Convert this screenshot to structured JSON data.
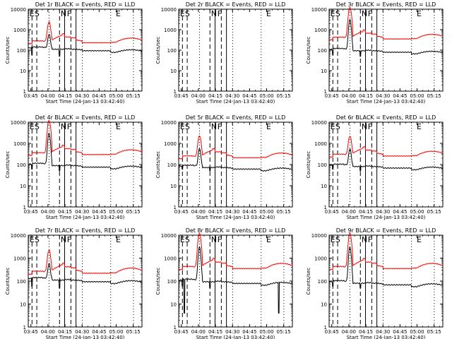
{
  "chart_data": {
    "type": "line",
    "layout": "3x3 grid of panels",
    "shared_xlabel": "Start Time (24-Jan-13 03:42:40)",
    "shared_ylabel": "Counts/sec",
    "x_tick_labels": [
      "03:45",
      "04:00",
      "04:15",
      "04:30",
      "04:45",
      "05:00",
      "05:15"
    ],
    "x_ticks_min": [
      2.33,
      17.33,
      32.33,
      47.33,
      62.33,
      77.33,
      92.33
    ],
    "xlim_min": [
      0,
      100
    ],
    "y_tick_labels": [
      "1",
      "10",
      "100",
      "1000",
      "10000"
    ],
    "y_ticks": [
      1,
      10,
      100,
      1000,
      10000
    ],
    "ylim": [
      1,
      10000
    ],
    "yscale": "log",
    "series_legend": "BLACK = Events, RED = LLD",
    "series_colors": {
      "events": "#000000",
      "lld": "#ff0000"
    },
    "event_letters": [
      "E",
      "S",
      "N",
      "F",
      "E"
    ],
    "panels": [
      {
        "title": "Det 1r BLACK = Events, RED = LLD",
        "labels": [
          "E",
          "S",
          "N",
          "F",
          "E"
        ],
        "lld_base": 210,
        "events_base": 130,
        "flare_peak": 2400,
        "dips": []
      },
      {
        "title": "Det 2r BLACK = Events, RED = LLD",
        "labels": [
          "E",
          "S",
          "N",
          "F",
          "E"
        ],
        "lld_base": 0,
        "events_base": 0,
        "flare_peak": 0,
        "dips": []
      },
      {
        "title": "Det 3r BLACK = Events, RED = LLD",
        "labels": [
          "E",
          "S",
          "N",
          "F",
          "E"
        ],
        "lld_base": 320,
        "events_base": 110,
        "flare_peak": 12000,
        "dips": []
      },
      {
        "title": "Det 4r BLACK = Events, RED = LLD",
        "labels": [
          "E",
          "S",
          "N",
          "F",
          "E"
        ],
        "lld_base": 270,
        "events_base": 105,
        "flare_peak": 12000,
        "dips": []
      },
      {
        "title": "Det 5r BLACK = Events, RED = LLD",
        "labels": [
          "E",
          "S",
          "N",
          "F",
          "E"
        ],
        "lld_base": 190,
        "events_base": 85,
        "flare_peak": 2300,
        "dips": []
      },
      {
        "title": "Det 6r BLACK = Events, RED = LLD",
        "labels": [
          "E",
          "S",
          "N",
          "F",
          "E"
        ],
        "lld_base": 230,
        "events_base": 95,
        "flare_peak": 2200,
        "dips": []
      },
      {
        "title": "Det 7r BLACK = Events, RED = LLD",
        "labels": [
          "E",
          "S",
          "N",
          "F",
          "E"
        ],
        "lld_base": 200,
        "events_base": 130,
        "flare_peak": 2300,
        "dips": []
      },
      {
        "title": "Det 8r BLACK = Events, RED = LLD",
        "labels": [
          "E",
          "S",
          "N",
          "F",
          "E"
        ],
        "lld_base": 320,
        "events_base": 110,
        "flare_peak": 12000,
        "dips": [
          5,
          88
        ]
      },
      {
        "title": "Det 9r BLACK = Events, RED = LLD",
        "labels": [
          "E",
          "S",
          "N",
          "F",
          "E"
        ],
        "lld_base": 320,
        "events_base": 95,
        "flare_peak": 12000,
        "dips": []
      }
    ],
    "event_lines_min": {
      "dashed": [
        3.3,
        7.5,
        27.5,
        37.5
      ],
      "solid": [
        32,
        42
      ],
      "dotted": [
        18.3,
        47.5,
        72.5,
        92.5
      ]
    }
  }
}
